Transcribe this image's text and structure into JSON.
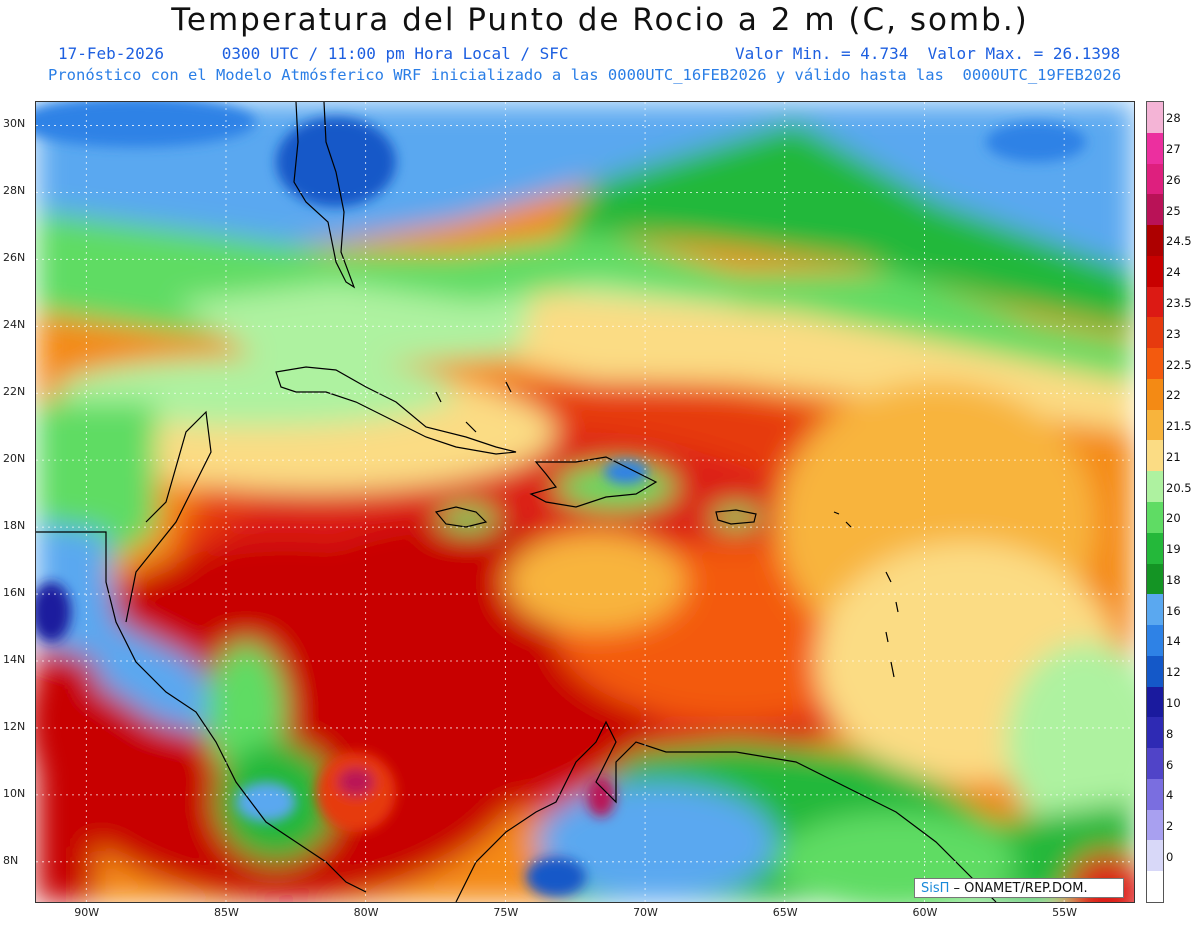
{
  "header": {
    "title": "Temperatura del Punto de Rocio a 2 m (C, somb.)",
    "date": "17-Feb-2026",
    "time": "0300 UTC / 11:00 pm Hora Local / SFC",
    "minmax": "Valor Min. = 4.734  Valor Max. = 26.1398",
    "model_line": "Pronóstico con el Modelo Atmósferico WRF inicializado a las 0000UTC_16FEB2026 y válido hasta las  0000UTC_19FEB2026"
  },
  "map": {
    "lat_labels": [
      "30N",
      "28N",
      "26N",
      "24N",
      "22N",
      "20N",
      "18N",
      "16N",
      "14N",
      "12N",
      "10N",
      "8N"
    ],
    "lat_values": [
      30,
      28,
      26,
      24,
      22,
      20,
      18,
      16,
      14,
      12,
      10,
      8
    ],
    "lon_labels": [
      "90W",
      "85W",
      "80W",
      "75W",
      "70W",
      "65W",
      "60W",
      "55W"
    ],
    "lon_values": [
      -90,
      -85,
      -80,
      -75,
      -70,
      -65,
      -60,
      -55
    ],
    "lat_range": [
      6.8,
      30.7
    ],
    "lon_range": [
      -91.8,
      -52.5
    ],
    "gridlines": true
  },
  "colorbar": {
    "labels": [
      "28",
      "27",
      "26",
      "25",
      "24.5",
      "24",
      "23.5",
      "23",
      "22.5",
      "22",
      "21.5",
      "21",
      "20.5",
      "20",
      "19",
      "18",
      "16",
      "14",
      "12",
      "10",
      "8",
      "6",
      "4",
      "2",
      "0"
    ],
    "colors": [
      "#f4b4d6",
      "#ec2f9f",
      "#de1f7e",
      "#b91257",
      "#ad0000",
      "#c80000",
      "#dc1a14",
      "#e63a0e",
      "#f35a0e",
      "#f48a14",
      "#f8b43c",
      "#fbdc84",
      "#aef2a0",
      "#5fdc64",
      "#24b83a",
      "#149424",
      "#5aa8f0",
      "#2e82e6",
      "#1458c8",
      "#1a1a9e",
      "#2e2ab4",
      "#5044c8",
      "#7a6ee0",
      "#a8a0f0",
      "#d8d8f8"
    ],
    "bottom_color": "#ffffff"
  },
  "credit": {
    "brand": "SisΠ",
    "text": " – ONAMET/REP.DOM."
  }
}
